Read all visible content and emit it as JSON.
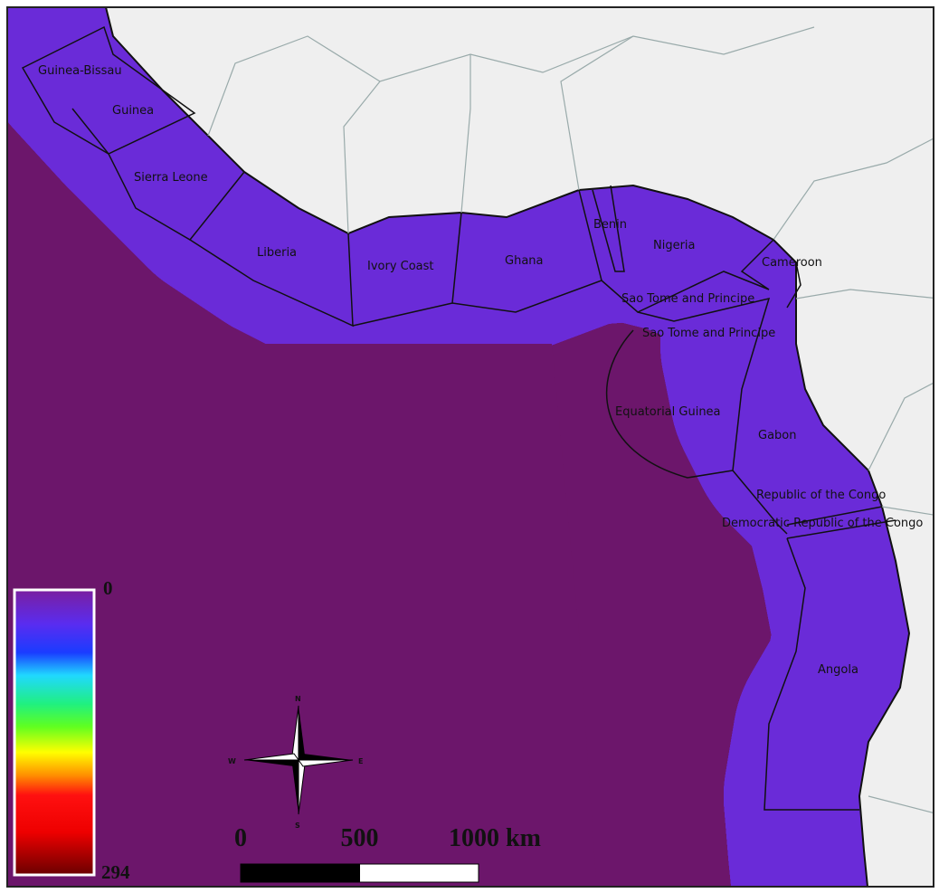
{
  "map": {
    "region_labels": [
      "Guinea-Bissau",
      "Guinea",
      "Sierra Leone",
      "Liberia",
      "Ivory Coast",
      "Ghana",
      "Benin",
      "Nigeria",
      "Cameroon",
      "Sao Tome and Principe",
      "Sao Tome and Principe",
      "Equatorial Guinea",
      "Gabon",
      "Republic of the Congo",
      "Democratic Republic of the Congo",
      "Angola"
    ],
    "legend": {
      "min": 0,
      "max": 294
    },
    "compass": {
      "north": "N",
      "south": "S",
      "east": "E",
      "west": "W"
    },
    "scale_bar": {
      "ticks": [
        0,
        500,
        {
          "value": 1000,
          "label": "1000 km"
        }
      ]
    }
  }
}
